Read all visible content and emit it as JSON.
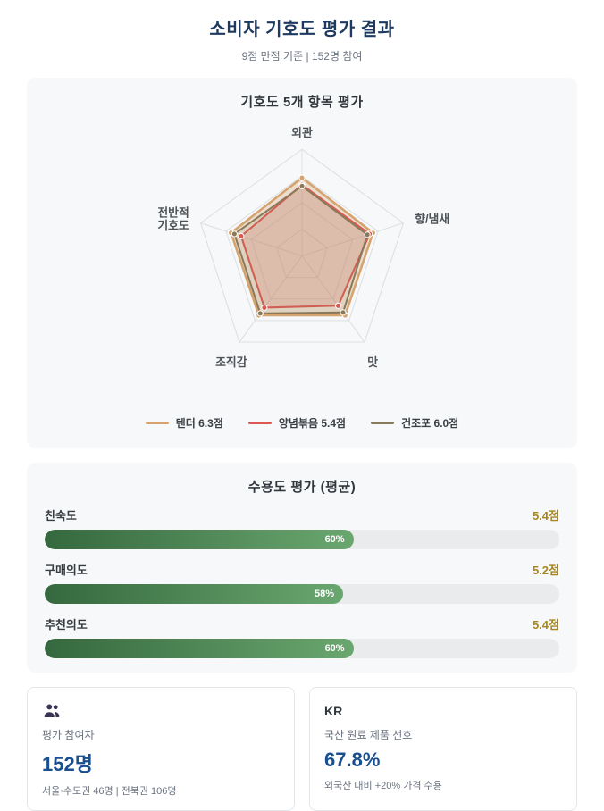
{
  "page": {
    "title": "소비자 기호도 평가 결과",
    "subtitle": "9점 만점 기준 | 152명 참여"
  },
  "chart_data": [
    {
      "type": "radar",
      "title": "기호도 5개 항목 평가",
      "scale_max": 9,
      "grid_rings": 4,
      "categories": [
        "외관",
        "향/냄새",
        "맛",
        "조직감",
        "전반적 기호도"
      ],
      "categories_display": [
        [
          "외관"
        ],
        [
          "향/냄새"
        ],
        [
          "맛"
        ],
        [
          "조직감"
        ],
        [
          "전반적",
          "기호도"
        ]
      ],
      "series": [
        {
          "name": "텐더",
          "score": 6.3,
          "legend_label": "텐더  6.3점",
          "color": "#d4a36e",
          "fill_opacity": 0.3,
          "stroke_width": 2.5,
          "values": [
            6.6,
            6.3,
            6.2,
            6.2,
            6.3
          ]
        },
        {
          "name": "양념볶음",
          "score": 5.4,
          "legend_label": "양념볶음  5.4점",
          "color": "#d95a52",
          "fill_opacity": 0.18,
          "stroke_width": 2,
          "values": [
            6.0,
            6.0,
            5.2,
            5.4,
            5.4
          ]
        },
        {
          "name": "건조포",
          "score": 6.0,
          "legend_label": "건조포  6.0점",
          "color": "#8a7a5a",
          "fill_opacity": 0.12,
          "stroke_width": 2,
          "values": [
            5.9,
            5.8,
            5.9,
            6.0,
            6.0
          ]
        }
      ],
      "grid_color": "#dcdfe2",
      "label_color": "#4d5358"
    },
    {
      "type": "bar",
      "title": "수용도 평가 (평균)",
      "categories": [
        "친숙도",
        "구매의도",
        "추천의도"
      ],
      "values": [
        5.4,
        5.2,
        5.4
      ],
      "percents": [
        60,
        58,
        60
      ],
      "scale_max": 9
    }
  ],
  "acceptance_card": {
    "title": "수용도 평가 (평균)",
    "rows": [
      {
        "label": "친숙도",
        "score": "5.4점",
        "percent": "60%",
        "percent_value": 60
      },
      {
        "label": "구매의도",
        "score": "5.2점",
        "percent": "58%",
        "percent_value": 58
      },
      {
        "label": "추천의도",
        "score": "5.4점",
        "percent": "60%",
        "percent_value": 60
      }
    ]
  },
  "stat_cards": [
    {
      "icon": "people-icon",
      "label": "평가 참여자",
      "value": "152명",
      "detail": "서울·수도권 46명 | 전북권 106명"
    },
    {
      "icon": "kr-badge",
      "badge": "KR",
      "label": "국산 원료 제품 선호",
      "value": "67.8%",
      "detail": "외국산 대비 +20% 가격 수용"
    }
  ],
  "colors": {
    "title_navy": "#1e3a5f",
    "score_gold": "#a8861d",
    "stat_blue": "#1a4f8f",
    "bar_green_start": "#35683e",
    "bar_green_end": "#6aa76f",
    "card_bg": "#f7f8f9",
    "icon_navy": "#3b3355"
  }
}
